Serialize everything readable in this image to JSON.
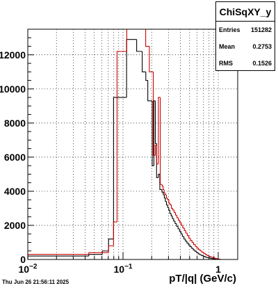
{
  "timestamp": "Thu Jun 26 21:56:11 2025",
  "stats": {
    "title": "ChiSqXY_y",
    "entries_label": "Entries",
    "entries_value": "151282",
    "mean_label": "Mean",
    "mean_value": "0.2753",
    "rms_label": "RMS",
    "rms_value": "0.1526"
  },
  "chart_data": {
    "type": "histogram",
    "xlabel": "pT/|q| (GeV/c)",
    "ylabel": "",
    "xscale": "log",
    "xlim": [
      0.01,
      1.6
    ],
    "ylim": [
      0,
      13500
    ],
    "grid": true,
    "x_tick_labels": [
      {
        "value": 0.01,
        "label": "10",
        "sup": "−2"
      },
      {
        "value": 0.1,
        "label": "10",
        "sup": "−1"
      },
      {
        "value": 1,
        "label": "1",
        "sup": ""
      }
    ],
    "y_ticks": [
      0,
      2000,
      4000,
      6000,
      8000,
      10000,
      12000
    ],
    "series": [
      {
        "color": "#000000",
        "edges": [
          0.01,
          0.0437,
          0.0605,
          0.0705,
          0.0795,
          0.109,
          0.139,
          0.159,
          0.1735,
          0.182,
          0.2025,
          0.211,
          0.2185,
          0.225,
          0.235,
          0.2435,
          0.25,
          0.2565,
          0.2645,
          0.2715,
          0.2785,
          0.286,
          0.294,
          0.302,
          0.31,
          0.32,
          0.33,
          0.34,
          0.352,
          0.365,
          0.378,
          0.392,
          0.406,
          0.42,
          0.436,
          0.452,
          0.469,
          0.487,
          0.506,
          0.526,
          0.547,
          0.569,
          0.592,
          0.617,
          0.643,
          0.671,
          0.7,
          0.731,
          0.764,
          0.799,
          0.836,
          0.876,
          0.918,
          0.963,
          1.01
        ],
        "values": [
          200,
          300,
          500,
          1200,
          9500,
          12900,
          12200,
          11000,
          10500,
          9300,
          5500,
          9300,
          6800,
          4800,
          5000,
          4100,
          4100,
          3950,
          3800,
          3600,
          3400,
          3200,
          3050,
          2900,
          2700,
          2550,
          2400,
          2250,
          2100,
          1950,
          1800,
          1650,
          1500,
          1350,
          1200,
          1080,
          960,
          850,
          750,
          650,
          560,
          480,
          400,
          330,
          270,
          220,
          180,
          140,
          110,
          85,
          60,
          40,
          25,
          10
        ]
      },
      {
        "color": "#cc0000",
        "edges": [
          0.01,
          0.0437,
          0.0705,
          0.0795,
          0.0865,
          0.1095,
          0.173,
          0.189,
          0.208,
          0.218,
          0.225,
          0.235,
          0.246,
          0.2575,
          0.2635,
          0.27,
          0.277,
          0.285,
          0.294,
          0.303,
          0.312,
          0.322,
          0.333,
          0.344,
          0.356,
          0.368,
          0.381,
          0.395,
          0.41,
          0.424,
          0.44,
          0.456,
          0.473,
          0.491,
          0.51,
          0.53,
          0.551,
          0.573,
          0.596,
          0.62,
          0.646,
          0.673,
          0.702,
          0.733,
          0.765,
          0.8,
          0.836,
          0.875,
          0.918,
          0.963,
          1.01,
          1.06
        ],
        "values": [
          300,
          400,
          800,
          2200,
          12200,
          13500,
          12500,
          11000,
          6100,
          6700,
          5600,
          9500,
          4400,
          4300,
          4100,
          3900,
          3800,
          3600,
          3500,
          3300,
          3200,
          3000,
          2900,
          2750,
          2600,
          2450,
          2300,
          2150,
          2000,
          1850,
          1700,
          1550,
          1400,
          1250,
          1120,
          1000,
          880,
          770,
          670,
          580,
          500,
          420,
          350,
          290,
          230,
          180,
          140,
          100,
          70,
          40,
          20
        ]
      }
    ]
  }
}
